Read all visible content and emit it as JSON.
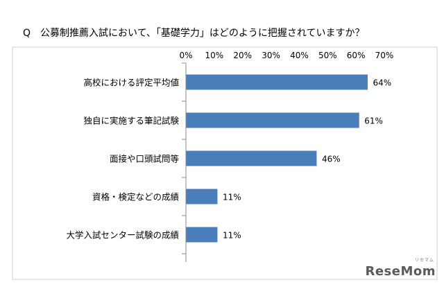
{
  "chart_data": {
    "type": "bar",
    "orientation": "horizontal",
    "title": "Q　公募制推薦入試において、「基礎学力」はどのように把握されていますか？",
    "categories": [
      "高校における評定平均値",
      "独自に実施する筆記試験",
      "面接や口頭試問等",
      "資格・検定などの成績",
      "大学入試センター試験の成績"
    ],
    "values": [
      64,
      61,
      46,
      11,
      11
    ],
    "value_labels": [
      "64%",
      "61%",
      "46%",
      "11%",
      "11%"
    ],
    "xlim": [
      0,
      70
    ],
    "x_ticks": [
      "0%",
      "10%",
      "20%",
      "30%",
      "40%",
      "50%",
      "60%",
      "70%"
    ],
    "x_tick_position": "top",
    "grid": false,
    "bar_color": "#4a7ebb"
  },
  "watermark": {
    "text": "ReseMom",
    "subtext": "リセマム",
    "color": "#5a5a5a"
  }
}
